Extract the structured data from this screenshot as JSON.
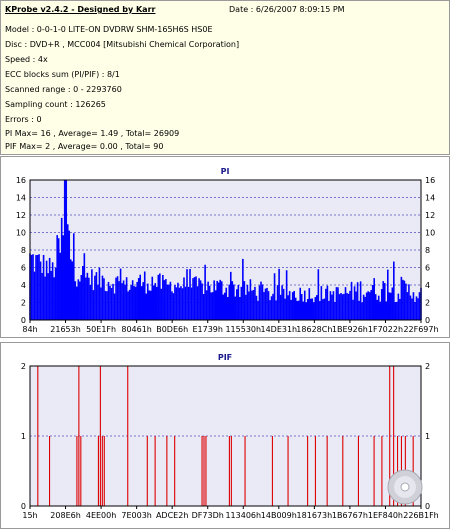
{
  "header": {
    "title": "KProbe v2.4.2 - Designed by Karr",
    "date": "Date : 6/26/2007 8:09:15 PM"
  },
  "info_lines": [
    "Model : 0-0-1-0 LITE-ON DVDRW SHM-165H6S HS0E",
    "Disc : DVD+R , MCC004 [Mitsubishi Chemical Corporation]",
    "Speed : 4x",
    "ECC blocks sum (PI/PIF) : 8/1",
    "Scanned range : 0 - 2293760",
    "Sampling count : 126265",
    "Errors : 0",
    "PI Max= 16 , Average= 1.49 , Total= 26909",
    "PIF Max= 2 , Average= 0.00 , Total= 90"
  ],
  "colors": {
    "bar": "#0000ff",
    "pif": "#dd0000",
    "grid": "#0000aa",
    "plot_bg": "#eaeaf6",
    "title": "#1a1a8c"
  },
  "chart_data": [
    {
      "type": "bar",
      "title": "PI",
      "ylim": [
        0,
        16
      ],
      "yticks": [
        0,
        2,
        4,
        6,
        8,
        10,
        12,
        14,
        16
      ],
      "xticks": [
        "84h",
        "21653h",
        "50E1Fh",
        "80461h",
        "B0DE6h",
        "E1739h",
        "115530h",
        "14DE31h",
        "18628Ch",
        "1BE926h",
        "1F7022h",
        "22F697h"
      ],
      "max": 16,
      "average": 1.49,
      "total": 26909,
      "peak_profile": [
        [
          0.0,
          9
        ],
        [
          0.03,
          8
        ],
        [
          0.06,
          7
        ],
        [
          0.09,
          16
        ],
        [
          0.12,
          7
        ],
        [
          0.16,
          6
        ],
        [
          0.2,
          6
        ],
        [
          0.25,
          5
        ],
        [
          0.3,
          6
        ],
        [
          0.35,
          5
        ],
        [
          0.4,
          5
        ],
        [
          0.45,
          5
        ],
        [
          0.5,
          5
        ],
        [
          0.55,
          5
        ],
        [
          0.6,
          4
        ],
        [
          0.65,
          4
        ],
        [
          0.7,
          4
        ],
        [
          0.75,
          4
        ],
        [
          0.8,
          4
        ],
        [
          0.85,
          5
        ],
        [
          0.9,
          5
        ],
        [
          0.95,
          5
        ],
        [
          1.0,
          4
        ]
      ],
      "base_profile": [
        [
          0.0,
          5
        ],
        [
          0.1,
          4
        ],
        [
          0.2,
          3
        ],
        [
          0.4,
          3
        ],
        [
          0.6,
          2
        ],
        [
          0.8,
          2
        ],
        [
          1.0,
          2
        ]
      ]
    },
    {
      "type": "bar",
      "title": "PIF",
      "ylim": [
        0,
        2
      ],
      "yticks": [
        0,
        1,
        2
      ],
      "xticks": [
        "15h",
        "208E6h",
        "4EE00h",
        "7E003h",
        "ADCE2h",
        "DF73Dh",
        "113406h",
        "14B009h",
        "181673h",
        "1B6767h",
        "1EF840h",
        "226B1Fh"
      ],
      "max": 2,
      "average": 0.0,
      "total": 90,
      "spikes": [
        [
          0.02,
          2
        ],
        [
          0.05,
          1
        ],
        [
          0.12,
          1
        ],
        [
          0.125,
          2
        ],
        [
          0.13,
          1
        ],
        [
          0.175,
          1
        ],
        [
          0.18,
          2
        ],
        [
          0.185,
          1
        ],
        [
          0.19,
          1
        ],
        [
          0.25,
          2
        ],
        [
          0.3,
          1
        ],
        [
          0.32,
          1
        ],
        [
          0.35,
          1
        ],
        [
          0.37,
          1
        ],
        [
          0.44,
          1
        ],
        [
          0.445,
          1
        ],
        [
          0.45,
          1
        ],
        [
          0.51,
          1
        ],
        [
          0.515,
          1
        ],
        [
          0.55,
          1
        ],
        [
          0.62,
          1
        ],
        [
          0.66,
          1
        ],
        [
          0.71,
          1
        ],
        [
          0.73,
          1
        ],
        [
          0.76,
          1
        ],
        [
          0.8,
          1
        ],
        [
          0.84,
          1
        ],
        [
          0.88,
          1
        ],
        [
          0.9,
          1
        ],
        [
          0.92,
          2
        ],
        [
          0.93,
          2
        ],
        [
          0.94,
          1
        ],
        [
          0.95,
          1
        ],
        [
          0.96,
          1
        ],
        [
          0.98,
          1
        ]
      ]
    }
  ]
}
